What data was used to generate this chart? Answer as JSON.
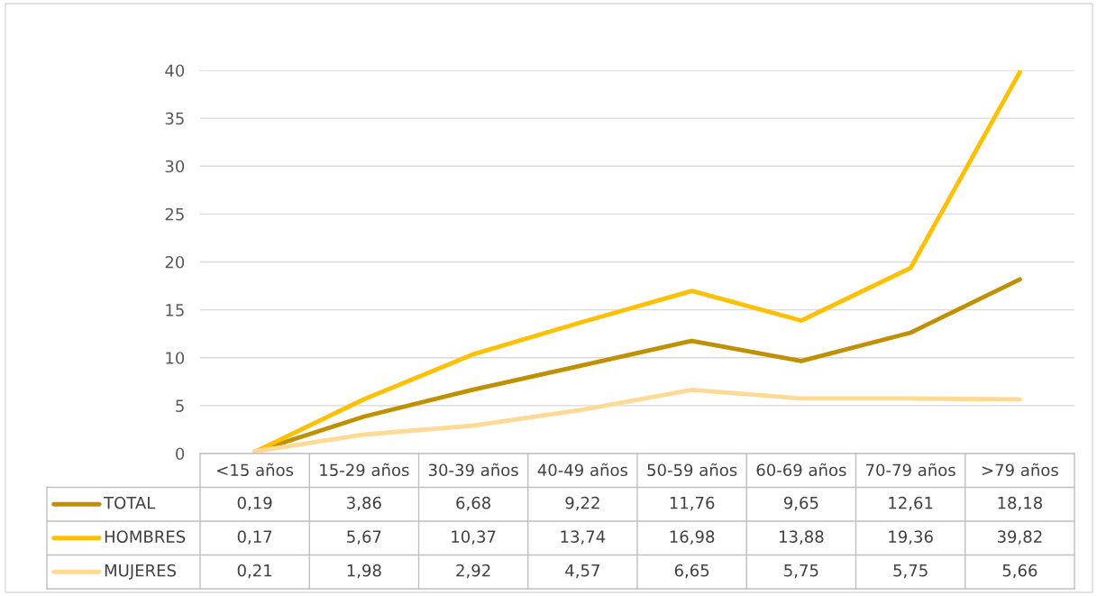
{
  "chart_data": {
    "type": "line",
    "categories": [
      "<15 años",
      "15-29 años",
      "30-39 años",
      "40-49 años",
      "50-59 años",
      "60-69 años",
      "70-79 años",
      ">79 años"
    ],
    "series": [
      {
        "name": "TOTAL",
        "color": "#bf9000",
        "values": [
          0.19,
          3.86,
          6.68,
          9.22,
          11.76,
          9.65,
          12.61,
          18.18
        ],
        "value_labels": [
          "0,19",
          "3,86",
          "6,68",
          "9,22",
          "11,76",
          "9,65",
          "12,61",
          "18,18"
        ]
      },
      {
        "name": "HOMBRES",
        "color": "#ffc000",
        "values": [
          0.17,
          5.67,
          10.37,
          13.74,
          16.98,
          13.88,
          19.36,
          39.82
        ],
        "value_labels": [
          "0,17",
          "5,67",
          "10,37",
          "13,74",
          "16,98",
          "13,88",
          "19,36",
          "39,82"
        ]
      },
      {
        "name": "MUJERES",
        "color": "#ffd996",
        "values": [
          0.21,
          1.98,
          2.92,
          4.57,
          6.65,
          5.75,
          5.75,
          5.66
        ],
        "value_labels": [
          "0,21",
          "1,98",
          "2,92",
          "4,57",
          "6,65",
          "5,75",
          "5,75",
          "5,66"
        ]
      }
    ],
    "ylim": [
      0,
      40
    ],
    "yticks": [
      0,
      5,
      10,
      15,
      20,
      25,
      30,
      35,
      40
    ],
    "grid": "y",
    "legend": "bottom",
    "marker": "none",
    "line_style": "solid"
  }
}
